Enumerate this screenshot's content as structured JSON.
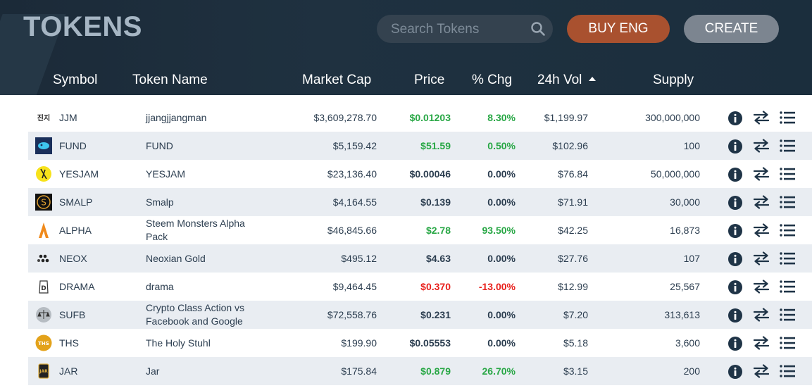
{
  "header": {
    "title": "TOKENS",
    "search_placeholder": "Search Tokens",
    "buy_label": "BUY ENG",
    "create_label": "CREATE"
  },
  "columns": {
    "symbol": "Symbol",
    "name": "Token Name",
    "market_cap": "Market Cap",
    "price": "Price",
    "change": "% Chg",
    "volume": "24h Vol",
    "supply": "Supply",
    "sorted_by": "24h Vol"
  },
  "colors": {
    "positive": "#28a745",
    "negative": "#e8201c",
    "buy_button": "#a9512f",
    "create_button": "#7c8590",
    "header_bg": "#1b2a38"
  },
  "tokens": [
    {
      "symbol": "JJM",
      "name": "jjangjjangman",
      "market_cap": "$3,609,278.70",
      "price": "$0.01203",
      "change": "8.30%",
      "volume": "$1,199.97",
      "supply": "300,000,000",
      "trend": "pos",
      "logo": "jjm-logo-text",
      "logo_text": "진지"
    },
    {
      "symbol": "FUND",
      "name": "FUND",
      "market_cap": "$5,159.42",
      "price": "$51.59",
      "change": "0.50%",
      "volume": "$102.96",
      "supply": "100",
      "trend": "pos",
      "logo": "fund-logo"
    },
    {
      "symbol": "YESJAM",
      "name": "YESJAM",
      "market_cap": "$23,136.40",
      "price": "$0.00046",
      "change": "0.00%",
      "volume": "$76.84",
      "supply": "50,000,000",
      "trend": "neu",
      "logo": "yesjam-logo"
    },
    {
      "symbol": "SMALP",
      "name": "Smalp",
      "market_cap": "$4,164.55",
      "price": "$0.139",
      "change": "0.00%",
      "volume": "$71.91",
      "supply": "30,000",
      "trend": "neu",
      "logo": "smalp-logo"
    },
    {
      "symbol": "ALPHA",
      "name": "Steem Monsters Alpha Pack",
      "market_cap": "$46,845.66",
      "price": "$2.78",
      "change": "93.50%",
      "volume": "$42.25",
      "supply": "16,873",
      "trend": "pos",
      "logo": "alpha-logo"
    },
    {
      "symbol": "NEOX",
      "name": "Neoxian Gold",
      "market_cap": "$495.12",
      "price": "$4.63",
      "change": "0.00%",
      "volume": "$27.76",
      "supply": "107",
      "trend": "neu",
      "logo": "neox-logo"
    },
    {
      "symbol": "DRAMA",
      "name": "drama",
      "market_cap": "$9,464.45",
      "price": "$0.370",
      "change": "-13.00%",
      "volume": "$12.99",
      "supply": "25,567",
      "trend": "neg",
      "logo": "drama-logo"
    },
    {
      "symbol": "SUFB",
      "name": "Crypto Class Action vs Facebook and Google",
      "market_cap": "$72,558.76",
      "price": "$0.231",
      "change": "0.00%",
      "volume": "$7.20",
      "supply": "313,613",
      "trend": "neu",
      "logo": "sufb-logo"
    },
    {
      "symbol": "THS",
      "name": "The Holy Stuhl",
      "market_cap": "$199.90",
      "price": "$0.05553",
      "change": "0.00%",
      "volume": "$5.18",
      "supply": "3,600",
      "trend": "neu",
      "logo": "ths-logo",
      "logo_text": "THS"
    },
    {
      "symbol": "JAR",
      "name": "Jar",
      "market_cap": "$175.84",
      "price": "$0.879",
      "change": "26.70%",
      "volume": "$3.15",
      "supply": "200",
      "trend": "pos",
      "logo": "jar-logo",
      "logo_text": "JAR"
    }
  ]
}
